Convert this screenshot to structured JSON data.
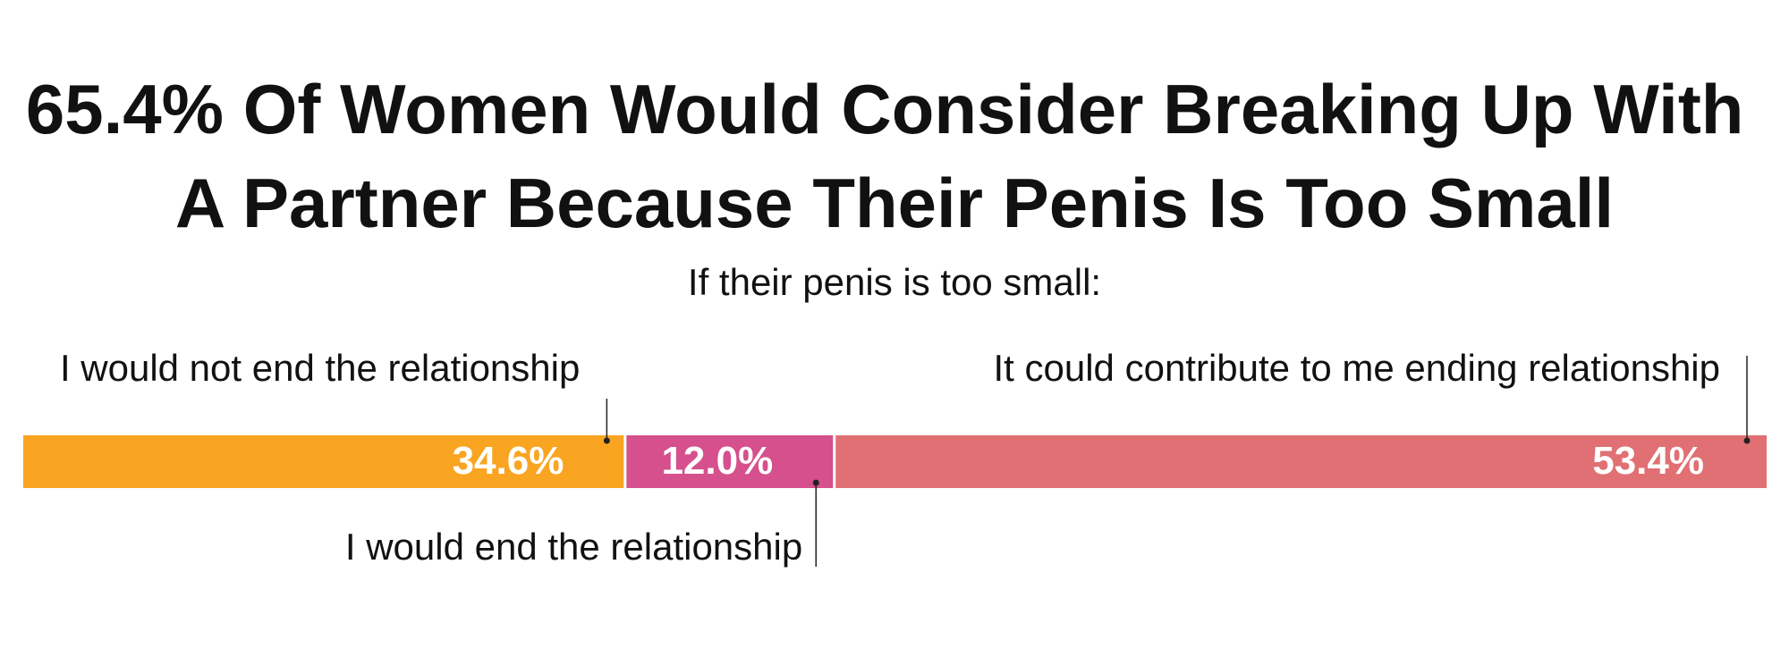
{
  "chart_data": {
    "type": "stacked-bar",
    "orientation": "horizontal",
    "title": "65.4% Of Women Would Consider Breaking Up With A Partner Because Their Penis Is Too Small",
    "subtitle": "If their penis is too small:",
    "series": [
      {
        "name": "I would not end the relationship",
        "color": "#F9A521",
        "values": [
          34.6
        ],
        "value_labels": [
          "34.6%"
        ]
      },
      {
        "name": "I would end the relationship",
        "color": "#D5508C",
        "values": [
          12.0
        ],
        "value_labels": [
          "12.0%"
        ]
      },
      {
        "name": "It could contribute to me ending relationship",
        "color": "#E07073",
        "values": [
          53.4
        ],
        "value_labels": [
          "53.4%"
        ]
      }
    ]
  }
}
